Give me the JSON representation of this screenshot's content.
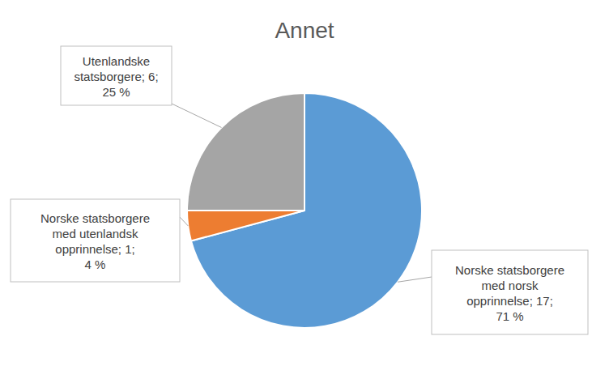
{
  "chart_data": {
    "type": "pie",
    "title": "Annet",
    "categories": [
      "Norske statsborgere med norsk opprinnelse",
      "Norske statsborgere med utenlandsk opprinnelse",
      "Utenlandske statsborgere"
    ],
    "values": [
      17,
      1,
      6
    ],
    "value_labels": [
      "Norske statsborgere med norsk opprinnelse; 17; 71 %",
      "Norske statsborgere med utenlandsk opprinnelse; 1; 4 %",
      "Utenlandske statsborgere; 6; 25 %"
    ],
    "colors": [
      "#5b9bd5",
      "#ed7d31",
      "#a5a5a5"
    ],
    "data_labels": true
  }
}
